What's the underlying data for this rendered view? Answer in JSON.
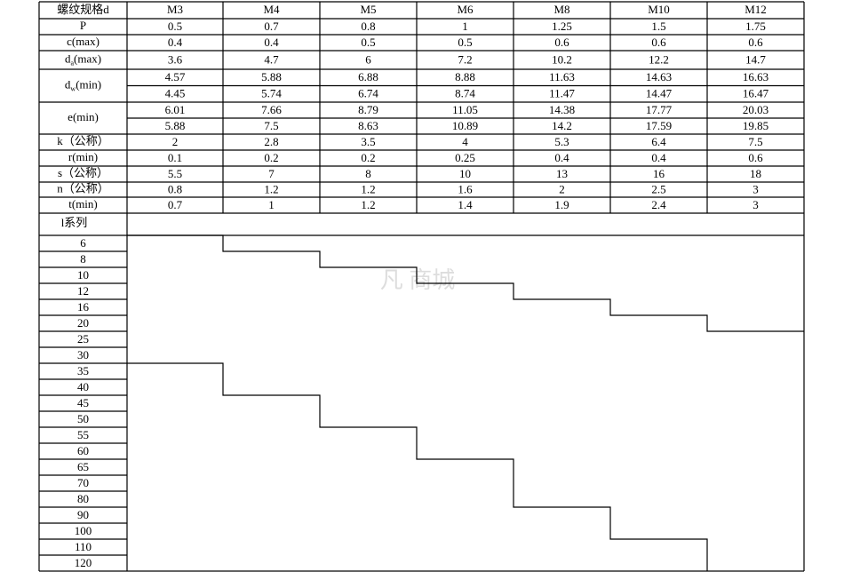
{
  "header": [
    "螺纹规格d",
    "M3",
    "M4",
    "M5",
    "M6",
    "M8",
    "M10",
    "M12"
  ],
  "rows": [
    {
      "label": "P",
      "lines": [
        [
          "0.5",
          "0.7",
          "0.8",
          "1",
          "1.25",
          "1.5",
          "1.75"
        ]
      ]
    },
    {
      "label": "c(max)",
      "lines": [
        [
          "0.4",
          "0.4",
          "0.5",
          "0.5",
          "0.6",
          "0.6",
          "0.6"
        ]
      ]
    },
    {
      "label": {
        "main": "d",
        "sub": "a",
        "rest": "(max)"
      },
      "lines": [
        [
          "3.6",
          "4.7",
          "6",
          "7.2",
          "10.2",
          "12.2",
          "14.7"
        ]
      ]
    },
    {
      "label": {
        "main": "d",
        "sub": "w",
        "rest": "(min)"
      },
      "lines": [
        [
          "4.57",
          "5.88",
          "6.88",
          "8.88",
          "11.63",
          "14.63",
          "16.63"
        ],
        [
          "4.45",
          "5.74",
          "6.74",
          "8.74",
          "11.47",
          "14.47",
          "16.47"
        ]
      ]
    },
    {
      "label": "e(min)",
      "lines": [
        [
          "6.01",
          "7.66",
          "8.79",
          "11.05",
          "14.38",
          "17.77",
          "20.03"
        ],
        [
          "5.88",
          "7.5",
          "8.63",
          "10.89",
          "14.2",
          "17.59",
          "19.85"
        ]
      ]
    },
    {
      "label": "k（公称）",
      "lines": [
        [
          "2",
          "2.8",
          "3.5",
          "4",
          "5.3",
          "6.4",
          "7.5"
        ]
      ]
    },
    {
      "label": "r(min)",
      "lines": [
        [
          "0.1",
          "0.2",
          "0.2",
          "0.25",
          "0.4",
          "0.4",
          "0.6"
        ]
      ]
    },
    {
      "label": "s（公称）",
      "lines": [
        [
          "5.5",
          "7",
          "8",
          "10",
          "13",
          "16",
          "18"
        ]
      ]
    },
    {
      "label": "n（公称）",
      "lines": [
        [
          "0.8",
          "1.2",
          "1.2",
          "1.6",
          "2",
          "2.5",
          "3"
        ]
      ]
    },
    {
      "label": "t(min)",
      "lines": [
        [
          "0.7",
          "1",
          "1.2",
          "1.4",
          "1.9",
          "2.4",
          "3"
        ]
      ]
    }
  ],
  "l_series": {
    "label": "l系列",
    "values": [
      "6",
      "8",
      "10",
      "12",
      "16",
      "20",
      "25",
      "30",
      "35",
      "40",
      "45",
      "50",
      "55",
      "60",
      "65",
      "70",
      "80",
      "90",
      "100",
      "110",
      "120"
    ]
  },
  "watermark": "凡 商城"
}
